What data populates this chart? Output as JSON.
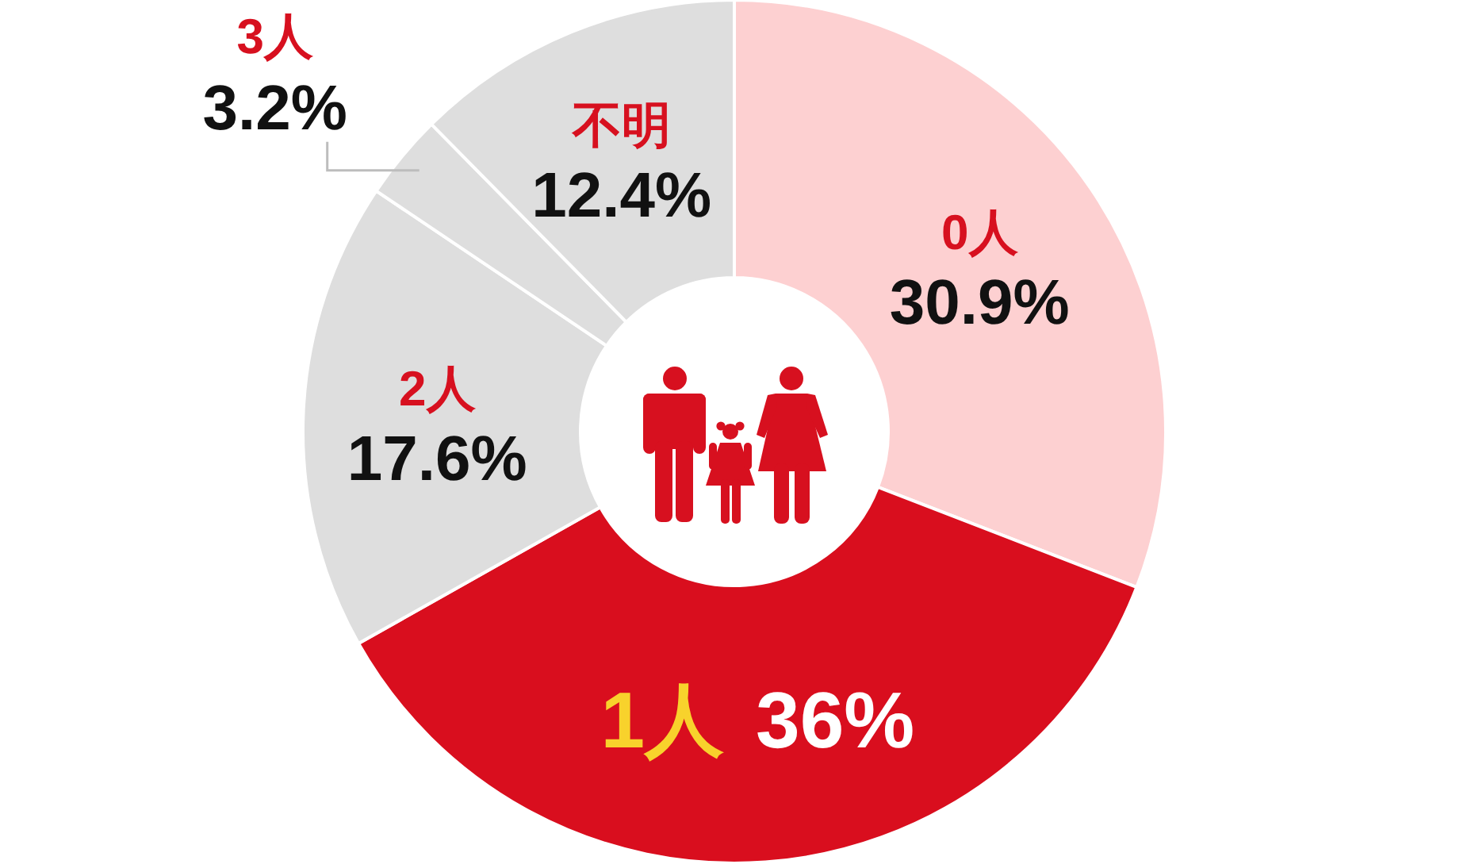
{
  "chart_data": {
    "type": "donut",
    "categories": [
      "0人",
      "1人",
      "2人",
      "3人",
      "不明"
    ],
    "values": [
      30.9,
      36,
      17.6,
      3.2,
      12.4
    ],
    "colors": [
      "#fdd0d1",
      "#d90e1e",
      "#dedede",
      "#dedede",
      "#dedede"
    ],
    "value_labels": [
      "30.9%",
      "36%",
      "17.6%",
      "3.2%",
      "12.4%"
    ]
  }
}
